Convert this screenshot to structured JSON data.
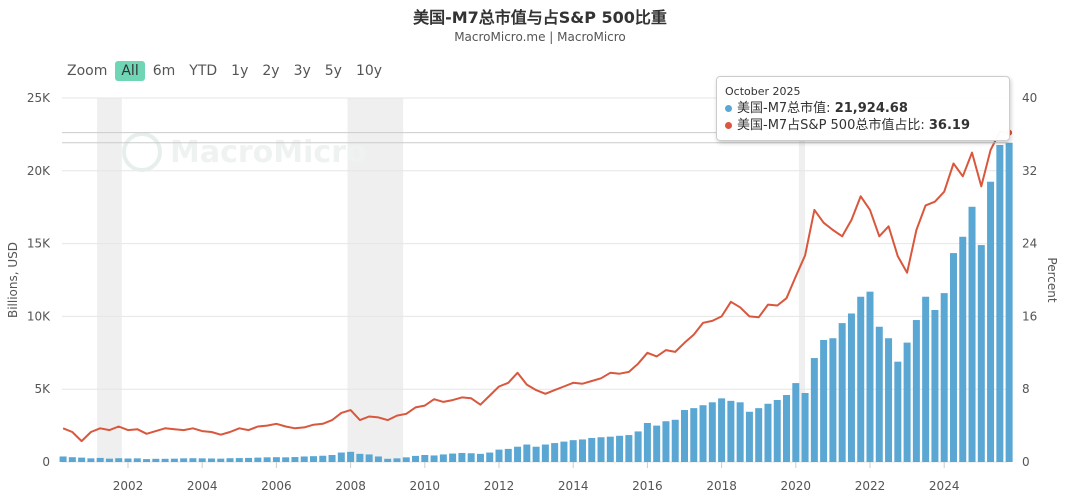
{
  "header": {
    "title": "美国-M7总市值与占S&P 500比重",
    "subtitle": "MacroMicro.me | MacroMicro",
    "watermark": "MacroMicro"
  },
  "zoom": {
    "label": "Zoom",
    "options": [
      "All",
      "6m",
      "YTD",
      "1y",
      "2y",
      "3y",
      "5y",
      "10y"
    ],
    "active": "All"
  },
  "tooltip": {
    "date": "October 2025",
    "series1_label": "美国-M7总市值: ",
    "series1_value": "21,924.68",
    "series2_label": "美国-M7占S&P 500总市值占比: ",
    "series2_value": "36.19"
  },
  "chart_data": {
    "type": "bar+line",
    "title": "美国-M7总市值与占S&P 500比重",
    "x_ticks": [
      "2002",
      "2004",
      "2006",
      "2008",
      "2010",
      "2012",
      "2014",
      "2016",
      "2018",
      "2020",
      "2022",
      "2024"
    ],
    "y_left": {
      "label": "Billions, USD",
      "range": [
        0,
        25000
      ],
      "ticks": [
        "0",
        "5K",
        "10K",
        "15K",
        "20K",
        "25K"
      ]
    },
    "y_right": {
      "label": "Percent",
      "range": [
        0,
        40
      ],
      "ticks": [
        "0",
        "8",
        "16",
        "24",
        "32",
        "40"
      ]
    },
    "grid": true,
    "recessions": [
      [
        "2001-03",
        "2001-11"
      ],
      [
        "2007-12",
        "2009-06"
      ],
      [
        "2020-02",
        "2020-04"
      ]
    ],
    "colors": {
      "bar": "#5ba7d3",
      "line": "#d9573d",
      "recession": "#efefef",
      "active_zoom": "#6fd6b5"
    },
    "dates": [
      "2000-04",
      "2000-07",
      "2000-10",
      "2001-01",
      "2001-04",
      "2001-07",
      "2001-10",
      "2002-01",
      "2002-04",
      "2002-07",
      "2002-10",
      "2003-01",
      "2003-04",
      "2003-07",
      "2003-10",
      "2004-01",
      "2004-04",
      "2004-07",
      "2004-10",
      "2005-01",
      "2005-04",
      "2005-07",
      "2005-10",
      "2006-01",
      "2006-04",
      "2006-07",
      "2006-10",
      "2007-01",
      "2007-04",
      "2007-07",
      "2007-10",
      "2008-01",
      "2008-04",
      "2008-07",
      "2008-10",
      "2009-01",
      "2009-04",
      "2009-07",
      "2009-10",
      "2010-01",
      "2010-04",
      "2010-07",
      "2010-10",
      "2011-01",
      "2011-04",
      "2011-07",
      "2011-10",
      "2012-01",
      "2012-04",
      "2012-07",
      "2012-10",
      "2013-01",
      "2013-04",
      "2013-07",
      "2013-10",
      "2014-01",
      "2014-04",
      "2014-07",
      "2014-10",
      "2015-01",
      "2015-04",
      "2015-07",
      "2015-10",
      "2016-01",
      "2016-04",
      "2016-07",
      "2016-10",
      "2017-01",
      "2017-04",
      "2017-07",
      "2017-10",
      "2018-01",
      "2018-04",
      "2018-07",
      "2018-10",
      "2019-01",
      "2019-04",
      "2019-07",
      "2019-10",
      "2020-01",
      "2020-04",
      "2020-07",
      "2020-10",
      "2021-01",
      "2021-04",
      "2021-07",
      "2021-10",
      "2022-01",
      "2022-04",
      "2022-07",
      "2022-10",
      "2023-01",
      "2023-04",
      "2023-07",
      "2023-10",
      "2024-01",
      "2024-04",
      "2024-07",
      "2024-10",
      "2025-01",
      "2025-04",
      "2025-07",
      "2025-10"
    ],
    "series": [
      {
        "name": "美国-M7总市值",
        "type": "bar",
        "axis": "left",
        "values": [
          380,
          330,
          300,
          250,
          280,
          230,
          260,
          240,
          250,
          200,
          220,
          220,
          230,
          250,
          260,
          250,
          240,
          230,
          260,
          270,
          280,
          300,
          320,
          330,
          320,
          340,
          380,
          400,
          430,
          480,
          650,
          700,
          560,
          520,
          380,
          220,
          250,
          320,
          420,
          480,
          450,
          520,
          580,
          620,
          600,
          560,
          650,
          850,
          900,
          1050,
          1200,
          1050,
          1200,
          1300,
          1400,
          1500,
          1550,
          1650,
          1700,
          1740,
          1800,
          1850,
          2100,
          2680,
          2500,
          2800,
          2900,
          3570,
          3700,
          3900,
          4100,
          4370,
          4200,
          4100,
          3450,
          3700,
          4000,
          4260,
          4600,
          5420,
          4740,
          7140,
          8380,
          8500,
          9540,
          10200,
          11350,
          11700,
          9290,
          8500,
          6890,
          8200,
          9750,
          11350,
          10440,
          11600,
          14350,
          15470,
          17530,
          14900,
          19250,
          21770,
          21924.68
        ]
      },
      {
        "name": "美国-M7占S&P 500总市值占比",
        "type": "line",
        "axis": "right",
        "values": [
          3.7,
          3.3,
          2.3,
          3.3,
          3.7,
          3.5,
          3.9,
          3.5,
          3.6,
          3.1,
          3.4,
          3.7,
          3.6,
          3.5,
          3.7,
          3.4,
          3.3,
          3.0,
          3.3,
          3.7,
          3.5,
          3.9,
          4.0,
          4.2,
          3.9,
          3.7,
          3.8,
          4.1,
          4.2,
          4.6,
          5.4,
          5.7,
          4.6,
          5.0,
          4.9,
          4.6,
          5.1,
          5.3,
          6.0,
          6.2,
          6.9,
          6.6,
          6.8,
          7.1,
          7.0,
          6.3,
          7.3,
          8.3,
          8.7,
          9.8,
          8.5,
          7.9,
          7.5,
          7.9,
          8.3,
          8.7,
          8.6,
          8.9,
          9.2,
          9.8,
          9.7,
          9.9,
          10.8,
          12.0,
          11.6,
          12.3,
          12.1,
          13.1,
          14.0,
          15.3,
          15.5,
          16.0,
          17.6,
          17.0,
          16.0,
          15.9,
          17.3,
          17.2,
          18.0,
          20.4,
          22.7,
          27.7,
          26.3,
          25.5,
          24.8,
          26.6,
          29.2,
          27.7,
          24.8,
          25.9,
          22.6,
          20.8,
          25.5,
          28.2,
          28.6,
          29.7,
          32.8,
          31.4,
          34.0,
          30.3,
          34.3,
          36.3,
          36.19
        ]
      }
    ],
    "hovered": {
      "date": "2025-10",
      "cap": 21924.68,
      "percent": 36.19
    }
  }
}
